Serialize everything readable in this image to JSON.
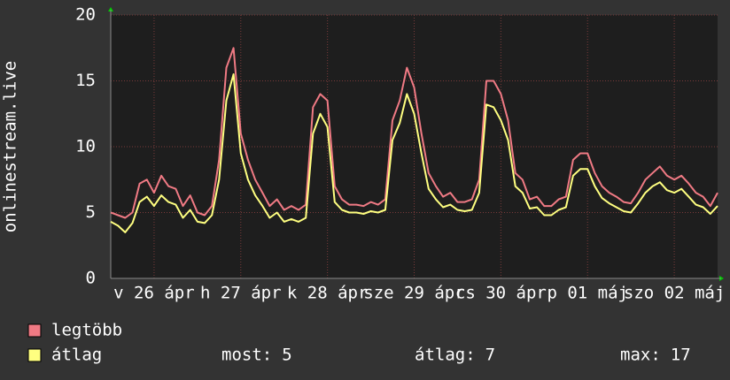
{
  "chart_data": {
    "type": "line",
    "ylabel": "onlinestream.live",
    "x": [
      0,
      2,
      4,
      6,
      8,
      10,
      12,
      14,
      16,
      18,
      20,
      22,
      24,
      26,
      28,
      30,
      32,
      34,
      36,
      38,
      40,
      42,
      44,
      46,
      48,
      50,
      52,
      54,
      56,
      58,
      60,
      62,
      64,
      66,
      68,
      70,
      72,
      74,
      76,
      78,
      80,
      82,
      84,
      86,
      88,
      90,
      92,
      94,
      96,
      98,
      100,
      102,
      104,
      106,
      108,
      110,
      112,
      114,
      116,
      118,
      120,
      122,
      124,
      126,
      128,
      130,
      132,
      134,
      136,
      138,
      140,
      142,
      144,
      146,
      148,
      150,
      152,
      154,
      156,
      158,
      160,
      162,
      164,
      166,
      168
    ],
    "xlim": [
      0,
      168
    ],
    "xticks": [
      {
        "value": 12,
        "label": "v 26 ápr"
      },
      {
        "value": 36,
        "label": "h 27 ápr"
      },
      {
        "value": 60,
        "label": "k 28 ápr"
      },
      {
        "value": 84,
        "label": "sze 29 ápr"
      },
      {
        "value": 108,
        "label": "cs 30 ápr"
      },
      {
        "value": 132,
        "label": "p 01 máj"
      },
      {
        "value": 156,
        "label": "szo 02 máj"
      }
    ],
    "ylim": [
      0,
      20
    ],
    "yticks": [
      0,
      5,
      10,
      15,
      20
    ],
    "grid": true,
    "series": [
      {
        "name": "legtöbb",
        "color": "#f07a84",
        "values": [
          5,
          4.8,
          4.6,
          5,
          7.2,
          7.5,
          6.5,
          7.8,
          7,
          6.8,
          5.5,
          6.3,
          5,
          4.8,
          5.5,
          9,
          16,
          17.5,
          11,
          9,
          7.5,
          6.5,
          5.5,
          6,
          5.2,
          5.5,
          5.2,
          5.6,
          13,
          14,
          13.5,
          7,
          6,
          5.6,
          5.6,
          5.5,
          5.8,
          5.6,
          6,
          12,
          13.5,
          16,
          14.5,
          11,
          8,
          7,
          6.2,
          6.5,
          5.8,
          5.8,
          6,
          7.5,
          15,
          15,
          14,
          12,
          8,
          7.5,
          6,
          6.2,
          5.5,
          5.5,
          6,
          6.2,
          9,
          9.5,
          9.5,
          8,
          7,
          6.5,
          6.2,
          5.8,
          5.7,
          6.5,
          7.5,
          8,
          8.5,
          7.8,
          7.5,
          7.8,
          7.2,
          6.5,
          6.2,
          5.5,
          6.5
        ]
      },
      {
        "name": "átlag",
        "color": "#ffff80",
        "values": [
          4.3,
          4,
          3.5,
          4.2,
          5.8,
          6.2,
          5.5,
          6.3,
          5.8,
          5.6,
          4.6,
          5.2,
          4.3,
          4.2,
          4.8,
          7.5,
          13.5,
          15.5,
          9.5,
          7.5,
          6.3,
          5.5,
          4.6,
          5,
          4.3,
          4.5,
          4.3,
          4.6,
          11,
          12.5,
          11.5,
          5.8,
          5.2,
          5,
          5,
          4.9,
          5.1,
          5,
          5.2,
          10.5,
          11.8,
          14,
          12.5,
          9.5,
          6.8,
          6,
          5.4,
          5.6,
          5.2,
          5.1,
          5.2,
          6.5,
          13.2,
          13,
          12,
          10.5,
          7,
          6.5,
          5.3,
          5.4,
          4.8,
          4.8,
          5.2,
          5.4,
          7.8,
          8.3,
          8.3,
          7,
          6.1,
          5.7,
          5.4,
          5.1,
          5,
          5.7,
          6.5,
          7,
          7.3,
          6.7,
          6.5,
          6.8,
          6.2,
          5.6,
          5.4,
          4.9,
          5.5
        ]
      }
    ],
    "stats": [
      {
        "label": "most:",
        "value": 5
      },
      {
        "label": "átlag:",
        "value": 7
      },
      {
        "label": "max:",
        "value": 17
      }
    ]
  }
}
